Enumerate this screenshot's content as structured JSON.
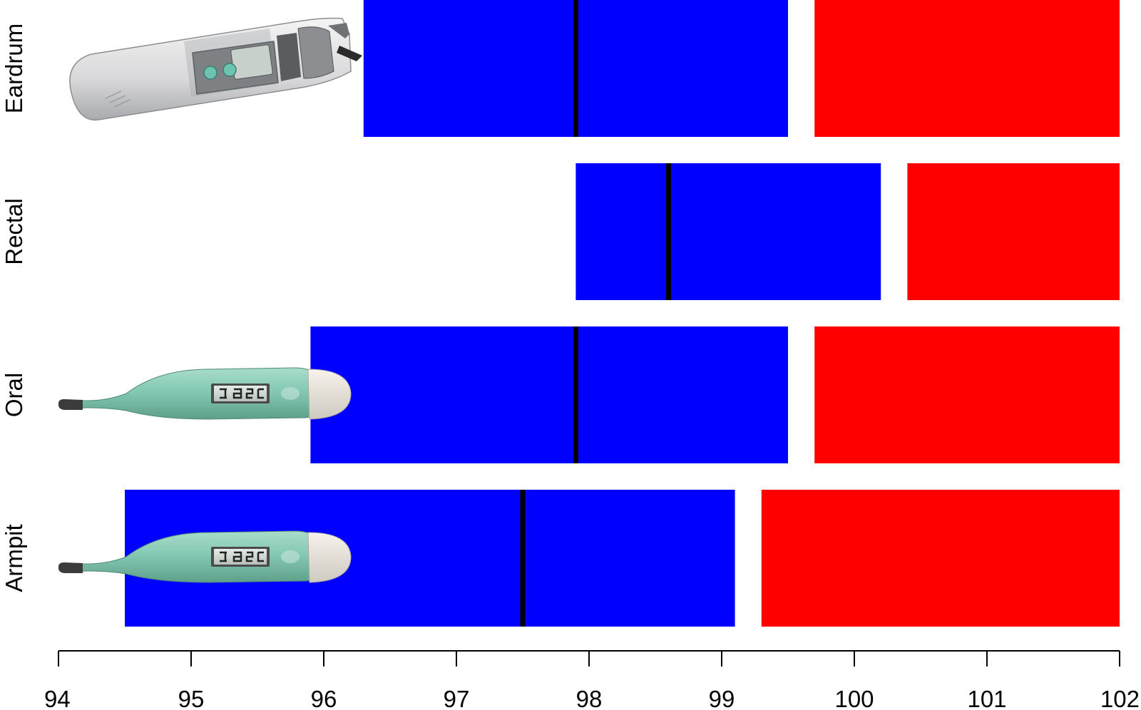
{
  "chart_data": {
    "type": "bar",
    "orientation": "horizontal-range",
    "title": "",
    "xlabel": "",
    "ylabel": "",
    "xlim": [
      94,
      102
    ],
    "x_ticks": [
      94,
      95,
      96,
      97,
      98,
      99,
      100,
      101,
      102
    ],
    "x_tick_labels": [
      "94",
      "95",
      "96",
      "97",
      "98",
      "99",
      "100",
      "101",
      "102"
    ],
    "grid": false,
    "legend": "none",
    "colors": {
      "normal": "#0000ff",
      "fever": "#ff0000",
      "mean": "#000000"
    },
    "categories": [
      "Eardrum",
      "Rectal",
      "Oral",
      "Armpit"
    ],
    "series": [
      {
        "values": [
          [
            96.3,
            99.5
          ],
          [
            97.9,
            100.2
          ],
          [
            95.9,
            99.5
          ],
          [
            94.5,
            99.1
          ]
        ]
      },
      {
        "values": [
          [
            99.7,
            102
          ],
          [
            100.4,
            102
          ],
          [
            99.7,
            102
          ],
          [
            99.3,
            102
          ]
        ]
      },
      {
        "values": [
          97.9,
          98.6,
          97.9,
          97.5
        ]
      }
    ],
    "row_icons": [
      "ear-thermometer-icon",
      "",
      "digital-thermometer-icon",
      "digital-thermometer-icon"
    ]
  }
}
